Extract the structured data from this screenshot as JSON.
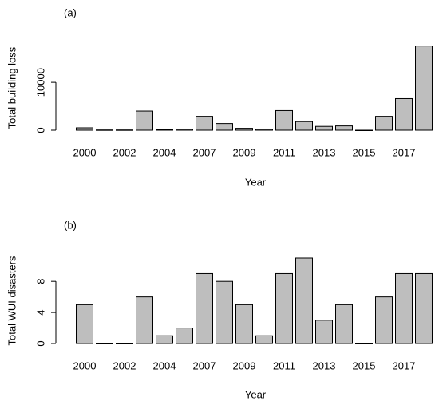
{
  "chart_data": [
    {
      "type": "bar",
      "title": "(a)",
      "xlabel": "Year",
      "ylabel": "Total building loss",
      "categories": [
        "2000",
        null,
        "2002",
        null,
        "2004",
        null,
        "2007",
        null,
        "2009",
        null,
        "2011",
        null,
        "2013",
        null,
        "2015",
        null,
        "2017",
        null
      ],
      "values": [
        500,
        50,
        50,
        4000,
        100,
        200,
        2900,
        1400,
        400,
        200,
        4100,
        1800,
        800,
        900,
        0,
        2900,
        6600,
        17600
      ],
      "color": "#bebebe",
      "ylim": [
        0,
        17700
      ],
      "yticks": [
        0,
        10000
      ]
    },
    {
      "type": "bar",
      "title": "(b)",
      "xlabel": "Year",
      "ylabel": "Total WUI disasters",
      "categories": [
        "2000",
        null,
        "2002",
        null,
        "2004",
        null,
        "2007",
        null,
        "2009",
        null,
        "2011",
        null,
        "2013",
        null,
        "2015",
        null,
        "2017",
        null
      ],
      "values": [
        5,
        0,
        0,
        6,
        1,
        2,
        9,
        8,
        5,
        1,
        9,
        11,
        3,
        5,
        0,
        6,
        9,
        9
      ],
      "color": "#bebebe",
      "ylim": [
        0,
        11
      ],
      "yticks": [
        0,
        4,
        8
      ]
    }
  ]
}
